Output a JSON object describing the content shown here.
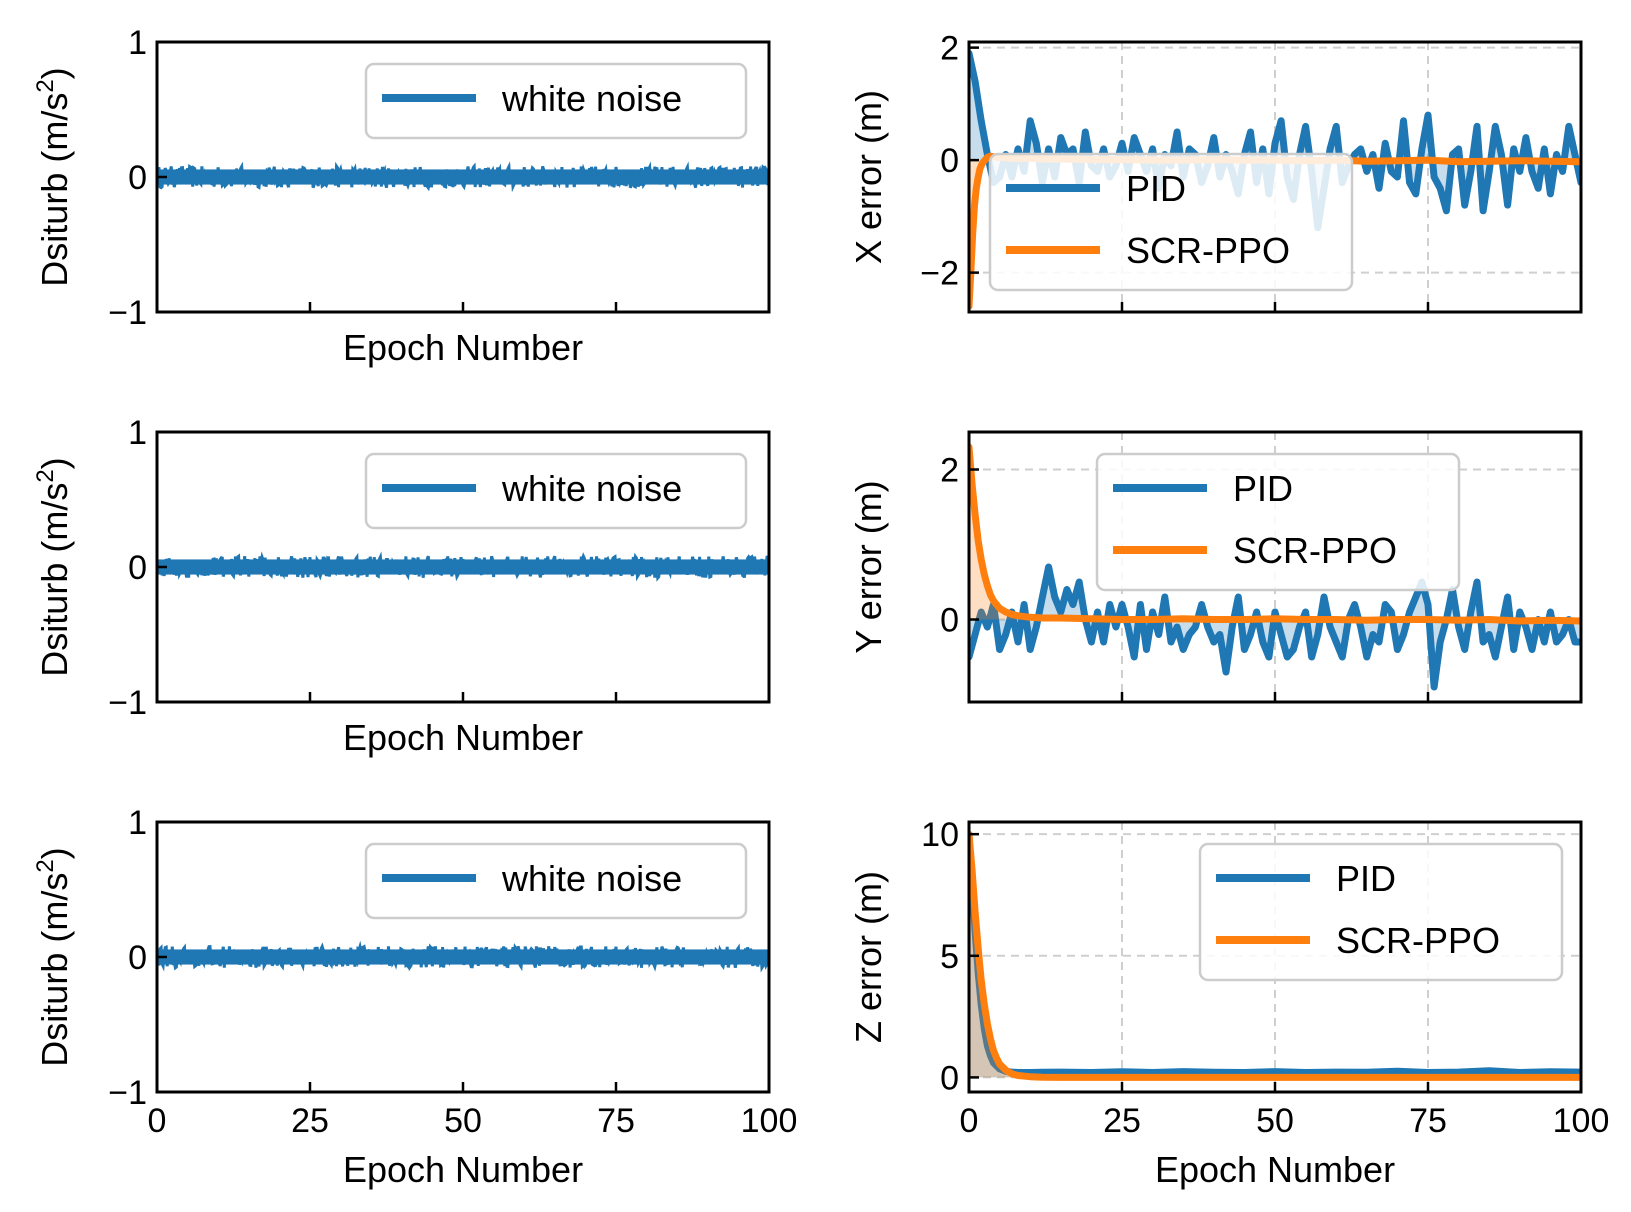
{
  "chart_data": [
    {
      "type": "line",
      "panel": "disturbance-x",
      "xlabel": "Epoch Number",
      "ylabel": "Dsiturb (m/s²)",
      "ylabel_base": "Dsiturb (m/s",
      "ylabel_sup": "2",
      "ylabel_tail": ")",
      "xlim": [
        0,
        100
      ],
      "ylim": [
        -1,
        1
      ],
      "yticks": [
        -1,
        0,
        1
      ],
      "ytick_labels": [
        "−1",
        "0",
        "1"
      ],
      "xticks": [
        25,
        50,
        75
      ],
      "xtick_labels": [],
      "grid": false,
      "legend": "top-right",
      "series": [
        {
          "name": "white noise",
          "color": "#1f77b4",
          "kind": "noise-band",
          "center": 0,
          "amplitude": 0.08
        }
      ]
    },
    {
      "type": "line",
      "panel": "error-x",
      "xlabel": "",
      "ylabel": "X error (m)",
      "xlim": [
        0,
        100
      ],
      "ylim": [
        -2.7,
        2.1
      ],
      "yticks": [
        -2,
        0,
        2
      ],
      "ytick_labels": [
        "−2",
        "0",
        "2"
      ],
      "xticks": [
        25,
        50,
        75
      ],
      "xtick_labels": [],
      "grid": true,
      "legend": "center-left",
      "series": [
        {
          "name": "PID",
          "color": "#1f77b4",
          "x": [
            0,
            1,
            2,
            3,
            4,
            5,
            6,
            7,
            8,
            9,
            10,
            11,
            12,
            13,
            14,
            15,
            16,
            17,
            18,
            19,
            20,
            21,
            22,
            23,
            24,
            25,
            26,
            27,
            28,
            29,
            30,
            31,
            32,
            33,
            34,
            35,
            36,
            37,
            38,
            39,
            40,
            41,
            42,
            43,
            44,
            45,
            46,
            47,
            48,
            49,
            50,
            51,
            52,
            53,
            54,
            55,
            56,
            57,
            58,
            59,
            60,
            61,
            62,
            63,
            64,
            65,
            66,
            67,
            68,
            69,
            70,
            71,
            72,
            73,
            74,
            75,
            76,
            77,
            78,
            79,
            80,
            81,
            82,
            83,
            84,
            85,
            86,
            87,
            88,
            89,
            90,
            91,
            92,
            93,
            94,
            95,
            96,
            97,
            98,
            99,
            100
          ],
          "y": [
            1.9,
            1.4,
            0.7,
            0.1,
            -0.4,
            -0.3,
            0.1,
            -0.3,
            0.2,
            -0.2,
            0.7,
            0.3,
            -0.4,
            0.2,
            -0.3,
            0.4,
            0.1,
            0.2,
            -0.4,
            0.5,
            -0.1,
            -0.2,
            0.2,
            -0.3,
            -0.1,
            0.3,
            -0.2,
            0.4,
            0.1,
            -0.2,
            0.2,
            -0.5,
            0.1,
            -0.1,
            0.5,
            -0.3,
            0.2,
            0.1,
            -0.4,
            -0.1,
            0.4,
            -0.3,
            0.1,
            -0.2,
            -0.6,
            0.1,
            0.5,
            -0.4,
            0.2,
            -0.6,
            0.3,
            0.7,
            -0.3,
            -0.7,
            0.1,
            0.6,
            -0.2,
            -1.2,
            -0.5,
            0.2,
            0.6,
            -0.4,
            -0.1,
            0.1,
            0.2,
            -0.2,
            0.1,
            -0.5,
            0.3,
            -0.2,
            -0.3,
            0.7,
            -0.4,
            -0.6,
            0.2,
            0.8,
            -0.3,
            -0.5,
            -0.9,
            0.1,
            0.2,
            -0.8,
            -0.2,
            0.6,
            -0.9,
            -0.2,
            0.6,
            0.1,
            -0.8,
            0.2,
            -0.2,
            0.4,
            -0.2,
            -0.5,
            0.2,
            -0.6,
            0.1,
            -0.2,
            0.6,
            0.1,
            -0.4
          ]
        },
        {
          "name": "SCR-PPO",
          "color": "#ff7f0e",
          "x": [
            0,
            0.3,
            0.6,
            0.9,
            1.2,
            1.5,
            1.8,
            2.2,
            2.6,
            3.0,
            3.5,
            4,
            5,
            6,
            7,
            8,
            10,
            12,
            15,
            20,
            25,
            30,
            35,
            40,
            45,
            50,
            55,
            60,
            65,
            70,
            75,
            80,
            85,
            90,
            95,
            100
          ],
          "y": [
            -2.6,
            -2.0,
            -1.3,
            -0.8,
            -0.5,
            -0.3,
            -0.15,
            -0.05,
            0.0,
            0.05,
            0.07,
            0.06,
            0.05,
            0.04,
            0.03,
            0.03,
            0.03,
            0.02,
            0.02,
            0.01,
            0.01,
            0.0,
            0.0,
            0.01,
            0.0,
            0.0,
            -0.01,
            0.0,
            -0.02,
            -0.01,
            0.0,
            -0.03,
            -0.02,
            -0.01,
            -0.02,
            -0.03
          ]
        }
      ]
    },
    {
      "type": "line",
      "panel": "disturbance-y",
      "xlabel": "Epoch Number",
      "ylabel": "Dsiturb (m/s²)",
      "ylabel_base": "Dsiturb (m/s",
      "ylabel_sup": "2",
      "ylabel_tail": ")",
      "xlim": [
        0,
        100
      ],
      "ylim": [
        -1,
        1
      ],
      "yticks": [
        -1,
        0,
        1
      ],
      "ytick_labels": [
        "−1",
        "0",
        "1"
      ],
      "xticks": [
        25,
        50,
        75
      ],
      "xtick_labels": [],
      "grid": false,
      "legend": "top-right",
      "series": [
        {
          "name": "white noise",
          "color": "#1f77b4",
          "kind": "noise-band",
          "center": 0,
          "amplitude": 0.08
        }
      ]
    },
    {
      "type": "line",
      "panel": "error-y",
      "xlabel": "",
      "ylabel": "Y error (m)",
      "xlim": [
        0,
        100
      ],
      "ylim": [
        -1.1,
        2.5
      ],
      "yticks": [
        0,
        2
      ],
      "ytick_labels": [
        "0",
        "2"
      ],
      "xticks": [
        25,
        50,
        75
      ],
      "xtick_labels": [],
      "grid": true,
      "legend": "top-center",
      "series": [
        {
          "name": "PID",
          "color": "#1f77b4",
          "x": [
            0,
            1,
            2,
            3,
            4,
            5,
            6,
            7,
            8,
            9,
            10,
            11,
            12,
            13,
            14,
            15,
            16,
            17,
            18,
            19,
            20,
            21,
            22,
            23,
            24,
            25,
            26,
            27,
            28,
            29,
            30,
            31,
            32,
            33,
            34,
            35,
            36,
            37,
            38,
            39,
            40,
            41,
            42,
            43,
            44,
            45,
            46,
            47,
            48,
            49,
            50,
            51,
            52,
            53,
            54,
            55,
            56,
            57,
            58,
            59,
            60,
            61,
            62,
            63,
            64,
            65,
            66,
            67,
            68,
            69,
            70,
            71,
            72,
            73,
            74,
            75,
            76,
            77,
            78,
            79,
            80,
            81,
            82,
            83,
            84,
            85,
            86,
            87,
            88,
            89,
            90,
            91,
            92,
            93,
            94,
            95,
            96,
            97,
            98,
            99,
            100
          ],
          "y": [
            -0.5,
            -0.2,
            0.1,
            -0.1,
            0.2,
            -0.4,
            -0.2,
            0.1,
            -0.3,
            0.2,
            -0.4,
            -0.1,
            0.3,
            0.7,
            0.3,
            0.1,
            0.4,
            0.2,
            0.5,
            0.0,
            -0.3,
            0.1,
            -0.3,
            0.2,
            -0.1,
            0.2,
            -0.1,
            -0.5,
            0.2,
            -0.4,
            0.1,
            -0.2,
            0.3,
            -0.3,
            -0.1,
            -0.4,
            -0.2,
            -0.1,
            0.2,
            -0.1,
            -0.3,
            -0.2,
            -0.7,
            -0.1,
            0.3,
            -0.4,
            -0.2,
            0.1,
            -0.3,
            -0.5,
            0.1,
            -0.2,
            -0.5,
            -0.4,
            -0.1,
            0.1,
            -0.5,
            -0.2,
            0.3,
            -0.1,
            -0.3,
            -0.5,
            0.0,
            0.2,
            -0.1,
            -0.5,
            -0.2,
            -0.3,
            0.2,
            0.1,
            -0.4,
            -0.2,
            0.1,
            0.3,
            0.5,
            0.2,
            -0.9,
            -0.3,
            0.0,
            0.4,
            -0.1,
            -0.4,
            0.1,
            0.5,
            -0.3,
            -0.2,
            -0.5,
            -0.1,
            0.3,
            -0.4,
            0.1,
            -0.1,
            -0.4,
            0.0,
            -0.3,
            0.1,
            -0.3,
            -0.2,
            0.0,
            -0.3,
            -0.3
          ]
        },
        {
          "name": "SCR-PPO",
          "color": "#ff7f0e",
          "x": [
            0,
            0.5,
            1,
            1.5,
            2,
            2.5,
            3,
            3.5,
            4,
            5,
            6,
            7,
            8,
            10,
            12,
            15,
            20,
            25,
            30,
            35,
            40,
            45,
            50,
            55,
            60,
            65,
            70,
            75,
            80,
            85,
            90,
            95,
            100
          ],
          "y": [
            2.3,
            1.8,
            1.4,
            1.05,
            0.8,
            0.6,
            0.45,
            0.33,
            0.25,
            0.15,
            0.1,
            0.07,
            0.05,
            0.03,
            0.02,
            0.02,
            0.01,
            0.0,
            0.0,
            0.01,
            0.0,
            0.0,
            0.01,
            0.0,
            0.0,
            -0.01,
            0.0,
            0.0,
            -0.01,
            0.0,
            -0.02,
            -0.01,
            -0.02
          ]
        }
      ]
    },
    {
      "type": "line",
      "panel": "disturbance-z",
      "xlabel": "Epoch Number",
      "ylabel": "Dsiturb (m/s²)",
      "ylabel_base": "Dsiturb (m/s",
      "ylabel_sup": "2",
      "ylabel_tail": ")",
      "xlim": [
        0,
        100
      ],
      "ylim": [
        -1,
        1
      ],
      "yticks": [
        -1,
        0,
        1
      ],
      "ytick_labels": [
        "−1",
        "0",
        "1"
      ],
      "xticks": [
        0,
        25,
        50,
        75,
        100
      ],
      "xtick_labels": [
        "0",
        "25",
        "50",
        "75",
        "100"
      ],
      "grid": false,
      "legend": "top-right",
      "series": [
        {
          "name": "white noise",
          "color": "#1f77b4",
          "kind": "noise-band",
          "center": 0,
          "amplitude": 0.08
        }
      ]
    },
    {
      "type": "line",
      "panel": "error-z",
      "xlabel": "Epoch Number",
      "ylabel": "Z error (m)",
      "xlim": [
        0,
        100
      ],
      "ylim": [
        -0.6,
        10.5
      ],
      "yticks": [
        0,
        5,
        10
      ],
      "ytick_labels": [
        "0",
        "5",
        "10"
      ],
      "xticks": [
        0,
        25,
        50,
        75,
        100
      ],
      "xtick_labels": [
        "0",
        "25",
        "50",
        "75",
        "100"
      ],
      "grid": true,
      "legend": "top-right",
      "series": [
        {
          "name": "PID",
          "color": "#1f77b4",
          "x": [
            0,
            0.5,
            1,
            1.5,
            2,
            2.5,
            3,
            3.5,
            4,
            5,
            6,
            7,
            8,
            9,
            10,
            12,
            15,
            20,
            25,
            30,
            35,
            40,
            45,
            50,
            55,
            60,
            65,
            70,
            75,
            80,
            85,
            90,
            95,
            100
          ],
          "y": [
            10.0,
            8.0,
            6.0,
            4.3,
            3.0,
            2.0,
            1.3,
            0.9,
            0.6,
            0.35,
            0.25,
            0.22,
            0.2,
            0.2,
            0.2,
            0.21,
            0.22,
            0.2,
            0.23,
            0.2,
            0.24,
            0.21,
            0.2,
            0.24,
            0.2,
            0.22,
            0.21,
            0.25,
            0.2,
            0.22,
            0.27,
            0.2,
            0.23,
            0.22
          ]
        },
        {
          "name": "SCR-PPO",
          "color": "#ff7f0e",
          "x": [
            0,
            0.5,
            1,
            1.5,
            2,
            2.5,
            3,
            3.5,
            4,
            4.5,
            5,
            6,
            7,
            8,
            10,
            12,
            15,
            20,
            30,
            40,
            50,
            60,
            70,
            80,
            90,
            100
          ],
          "y": [
            10.0,
            8.5,
            6.8,
            5.3,
            4.0,
            3.0,
            2.2,
            1.6,
            1.1,
            0.8,
            0.55,
            0.3,
            0.15,
            0.08,
            0.03,
            0.01,
            0.0,
            0.0,
            0.0,
            0.0,
            0.0,
            0.0,
            0.0,
            0.0,
            0.0,
            0.0
          ]
        }
      ]
    }
  ]
}
